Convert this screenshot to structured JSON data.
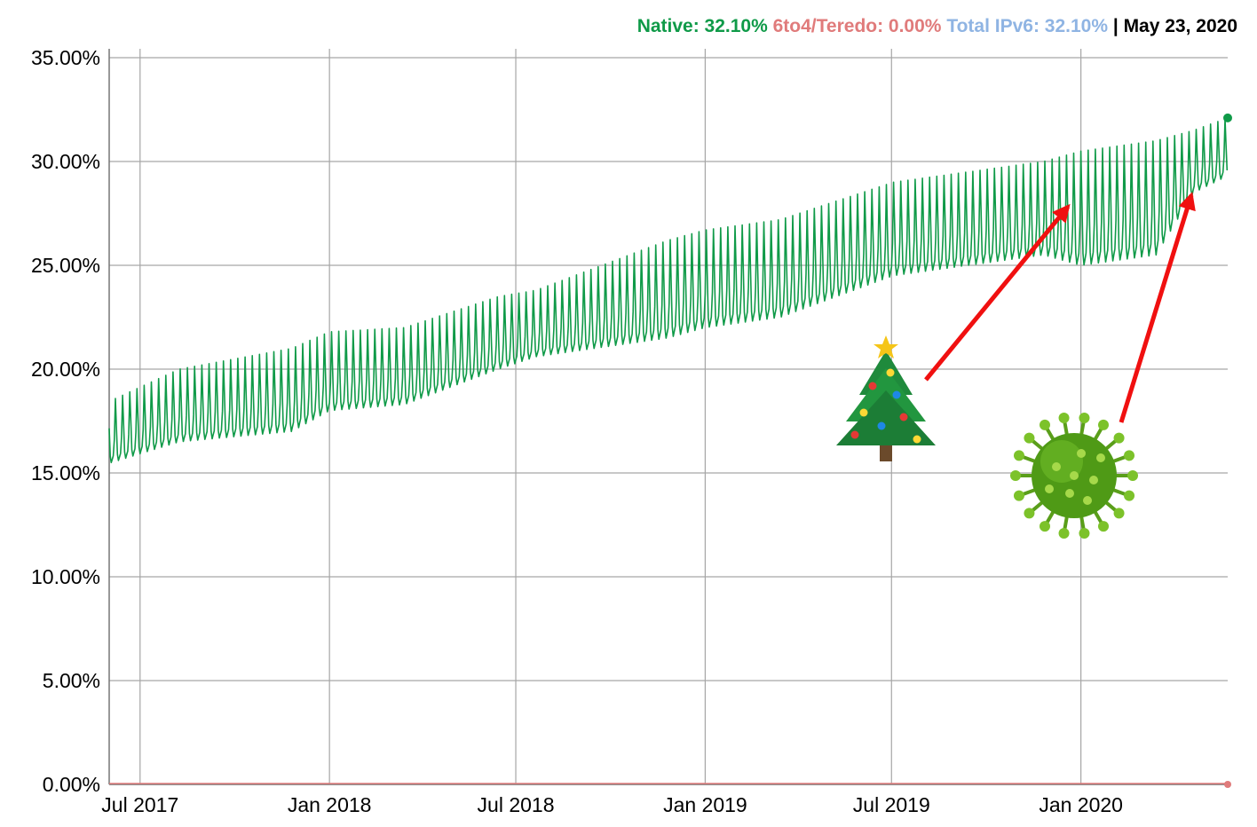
{
  "header": {
    "native_label": "Native: 32.10%",
    "teredo_label": "6to4/Teredo: 0.00%",
    "total_label": "Total IPv6: 32.10%",
    "separator": " | ",
    "date": "May 23, 2020"
  },
  "colors": {
    "native": "#0f9a48",
    "teredo": "#e07b7b",
    "total": "#8fb4e3",
    "arrow": "#f01010",
    "grid": "#a6a6a6"
  },
  "annotations": {
    "icons": [
      "christmas-tree-icon",
      "coronavirus-icon"
    ]
  },
  "chart_data": {
    "type": "line",
    "ylim": [
      0,
      35
    ],
    "grid": true,
    "y_ticks": [
      "0.00%",
      "5.00%",
      "10.00%",
      "15.00%",
      "20.00%",
      "25.00%",
      "30.00%",
      "35.00%"
    ],
    "x_ticks": [
      "Jul 2017",
      "Jan 2018",
      "Jul 2018",
      "Jan 2019",
      "Jul 2019",
      "Jan 2020"
    ],
    "x_range": [
      "2017-06-01",
      "2020-05-23"
    ],
    "series": [
      {
        "name": "Native",
        "weekday_low": [
          [
            2017.42,
            15.5
          ],
          [
            2017.6,
            16.5
          ],
          [
            2017.9,
            17.0
          ],
          [
            2018.0,
            18.0
          ],
          [
            2018.2,
            18.3
          ],
          [
            2018.45,
            20.0
          ],
          [
            2018.55,
            20.6
          ],
          [
            2018.9,
            21.5
          ],
          [
            2019.0,
            22.0
          ],
          [
            2019.2,
            22.5
          ],
          [
            2019.5,
            24.5
          ],
          [
            2019.9,
            25.5
          ],
          [
            2020.0,
            25.0
          ],
          [
            2020.2,
            25.5
          ],
          [
            2020.3,
            28.5
          ],
          [
            2020.39,
            29.3
          ]
        ],
        "weekend_high": [
          [
            2017.42,
            18.5
          ],
          [
            2017.6,
            20.0
          ],
          [
            2017.9,
            21.0
          ],
          [
            2018.0,
            21.8
          ],
          [
            2018.2,
            22.0
          ],
          [
            2018.45,
            23.5
          ],
          [
            2018.55,
            23.8
          ],
          [
            2018.9,
            26.2
          ],
          [
            2019.0,
            26.7
          ],
          [
            2019.2,
            27.2
          ],
          [
            2019.5,
            29.0
          ],
          [
            2019.9,
            30.0
          ],
          [
            2020.0,
            30.5
          ],
          [
            2020.2,
            31.0
          ],
          [
            2020.3,
            31.5
          ],
          [
            2020.39,
            32.1
          ]
        ],
        "last_value": 32.1
      },
      {
        "name": "6to4/Teredo",
        "values": [
          0.0,
          0.0
        ],
        "last_value": 0.0
      }
    ]
  }
}
